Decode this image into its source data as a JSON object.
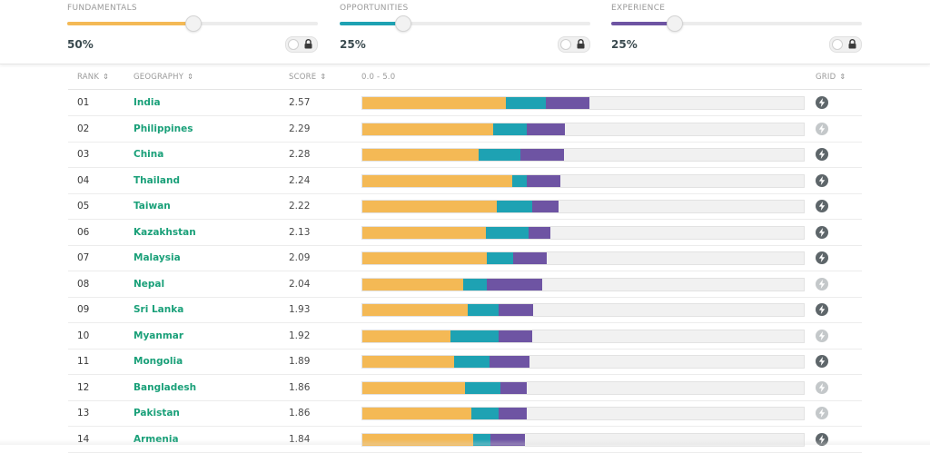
{
  "colors": {
    "fundamentals": "#f4b955",
    "opportunities": "#1ea2b3",
    "experience": "#6e54a3",
    "grid_on": "#5e666a",
    "grid_off": "#c4c8ca"
  },
  "sliders": [
    {
      "label": "FUNDAMENTALS",
      "percent_label": "50%",
      "value": 0.5,
      "color_key": "fundamentals",
      "lock_icon": "lock-icon"
    },
    {
      "label": "OPPORTUNITIES",
      "percent_label": "25%",
      "value": 0.25,
      "color_key": "opportunities",
      "lock_icon": "lock-icon"
    },
    {
      "label": "EXPERIENCE",
      "percent_label": "25%",
      "value": 0.25,
      "color_key": "experience",
      "lock_icon": "lock-icon"
    }
  ],
  "table": {
    "headers": {
      "rank": "RANK",
      "geography": "GEOGRAPHY",
      "score": "SCORE",
      "range": "0.0 - 5.0",
      "grid": "GRID"
    },
    "scale_max": 5.0,
    "rows": [
      {
        "rank": "01",
        "geography": "India",
        "score": "2.57",
        "segments": [
          1.63,
          0.45,
          0.49
        ],
        "grid": true
      },
      {
        "rank": "02",
        "geography": "Philippines",
        "score": "2.29",
        "segments": [
          1.48,
          0.38,
          0.43
        ],
        "grid": false
      },
      {
        "rank": "03",
        "geography": "China",
        "score": "2.28",
        "segments": [
          1.32,
          0.47,
          0.49
        ],
        "grid": true
      },
      {
        "rank": "04",
        "geography": "Thailand",
        "score": "2.24",
        "segments": [
          1.7,
          0.16,
          0.38
        ],
        "grid": true
      },
      {
        "rank": "05",
        "geography": "Taiwan",
        "score": "2.22",
        "segments": [
          1.52,
          0.4,
          0.3
        ],
        "grid": true
      },
      {
        "rank": "06",
        "geography": "Kazakhstan",
        "score": "2.13",
        "segments": [
          1.4,
          0.48,
          0.25
        ],
        "grid": true
      },
      {
        "rank": "07",
        "geography": "Malaysia",
        "score": "2.09",
        "segments": [
          1.41,
          0.3,
          0.38
        ],
        "grid": true
      },
      {
        "rank": "08",
        "geography": "Nepal",
        "score": "2.04",
        "segments": [
          1.14,
          0.27,
          0.63
        ],
        "grid": false
      },
      {
        "rank": "09",
        "geography": "Sri Lanka",
        "score": "1.93",
        "segments": [
          1.19,
          0.35,
          0.39
        ],
        "grid": true
      },
      {
        "rank": "10",
        "geography": "Myanmar",
        "score": "1.92",
        "segments": [
          1.0,
          0.54,
          0.38
        ],
        "grid": false
      },
      {
        "rank": "11",
        "geography": "Mongolia",
        "score": "1.89",
        "segments": [
          1.04,
          0.4,
          0.45
        ],
        "grid": true
      },
      {
        "rank": "12",
        "geography": "Bangladesh",
        "score": "1.86",
        "segments": [
          1.16,
          0.4,
          0.3
        ],
        "grid": false
      },
      {
        "rank": "13",
        "geography": "Pakistan",
        "score": "1.86",
        "segments": [
          1.23,
          0.31,
          0.32
        ],
        "grid": false
      },
      {
        "rank": "14",
        "geography": "Armenia",
        "score": "1.84",
        "segments": [
          1.26,
          0.19,
          0.39
        ],
        "grid": true
      }
    ]
  }
}
